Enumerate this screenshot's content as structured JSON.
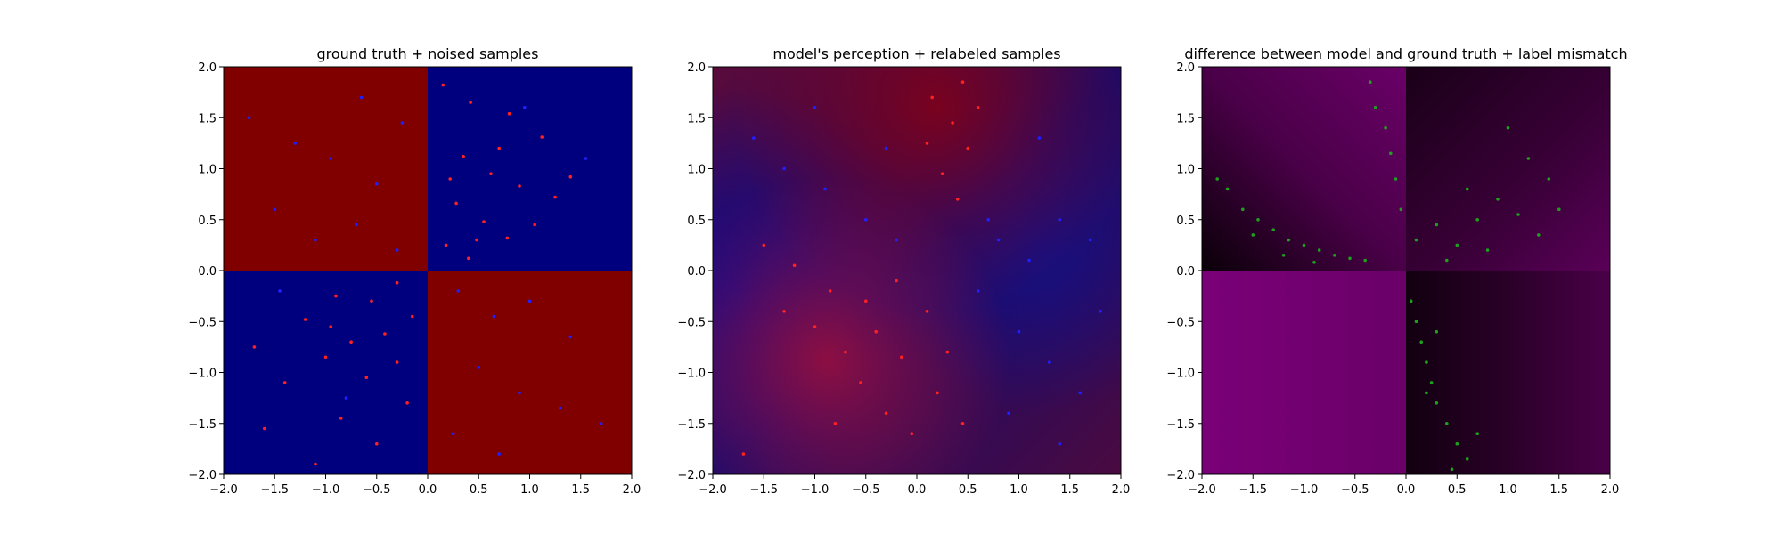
{
  "chart_data": [
    {
      "type": "scatter",
      "title": "ground truth + noised samples",
      "xlabel": "",
      "ylabel": "",
      "xlim": [
        -2.0,
        2.0
      ],
      "ylim": [
        -2.0,
        2.0
      ],
      "xticks": [
        "−2.0",
        "−1.5",
        "−1.0",
        "−0.5",
        "0.0",
        "0.5",
        "1.0",
        "1.5",
        "2.0"
      ],
      "yticks": [
        "−2.0",
        "−1.5",
        "−1.0",
        "−0.5",
        "0.0",
        "0.5",
        "1.0",
        "1.5",
        "2.0"
      ],
      "background": "quadrant classes (XOR): red where x<0,y>0 and x>0,y<0; blue otherwise",
      "colors": {
        "class_red": "#800000",
        "class_blue": "#00007f",
        "point_red": "#ff2020",
        "point_blue": "#2020ff"
      },
      "series": [
        {
          "name": "",
          "color": "#ff2020",
          "values": [
            [
              0.15,
              1.82
            ],
            [
              0.42,
              1.65
            ],
            [
              0.8,
              1.54
            ],
            [
              1.12,
              1.31
            ],
            [
              0.35,
              1.12
            ],
            [
              0.62,
              0.95
            ],
            [
              0.9,
              0.83
            ],
            [
              1.25,
              0.72
            ],
            [
              0.28,
              0.66
            ],
            [
              0.55,
              0.48
            ],
            [
              0.78,
              0.32
            ],
            [
              0.18,
              0.25
            ],
            [
              0.4,
              0.12
            ],
            [
              1.05,
              0.45
            ],
            [
              1.4,
              0.92
            ],
            [
              0.7,
              1.2
            ],
            [
              0.22,
              0.9
            ],
            [
              0.48,
              0.3
            ],
            [
              -0.3,
              -0.12
            ],
            [
              -0.55,
              -0.3
            ],
            [
              -0.9,
              -0.25
            ],
            [
              -1.2,
              -0.48
            ],
            [
              -0.42,
              -0.62
            ],
            [
              -0.75,
              -0.7
            ],
            [
              -1.0,
              -0.85
            ],
            [
              -0.3,
              -0.9
            ],
            [
              -0.6,
              -1.05
            ],
            [
              -1.4,
              -1.1
            ],
            [
              -0.2,
              -1.3
            ],
            [
              -0.85,
              -1.45
            ],
            [
              -1.6,
              -1.55
            ],
            [
              -0.5,
              -1.7
            ],
            [
              -1.1,
              -1.9
            ],
            [
              -0.15,
              -0.45
            ],
            [
              -1.7,
              -0.75
            ],
            [
              -0.95,
              -0.55
            ]
          ]
        },
        {
          "name": "",
          "color": "#2020ff",
          "values": [
            [
              -0.3,
              0.2
            ],
            [
              -0.7,
              0.45
            ],
            [
              -1.1,
              0.3
            ],
            [
              -1.5,
              0.6
            ],
            [
              -0.5,
              0.85
            ],
            [
              -0.95,
              1.1
            ],
            [
              -1.3,
              1.25
            ],
            [
              -0.25,
              1.45
            ],
            [
              -0.65,
              1.7
            ],
            [
              -1.75,
              1.5
            ],
            [
              0.3,
              -0.2
            ],
            [
              0.65,
              -0.45
            ],
            [
              1.0,
              -0.3
            ],
            [
              1.4,
              -0.65
            ],
            [
              0.5,
              -0.95
            ],
            [
              0.9,
              -1.2
            ],
            [
              1.3,
              -1.35
            ],
            [
              0.25,
              -1.6
            ],
            [
              0.7,
              -1.8
            ],
            [
              1.7,
              -1.5
            ],
            [
              1.55,
              1.1
            ],
            [
              0.95,
              1.6
            ],
            [
              -1.45,
              -0.2
            ],
            [
              -0.8,
              -1.25
            ]
          ]
        }
      ]
    },
    {
      "type": "scatter",
      "title": "model's perception + relabeled samples",
      "xlabel": "",
      "ylabel": "",
      "xlim": [
        -2.0,
        2.0
      ],
      "ylim": [
        -2.0,
        2.0
      ],
      "xticks": [
        "−2.0",
        "−1.5",
        "−1.0",
        "−0.5",
        "0.0",
        "0.5",
        "1.0",
        "1.5",
        "2.0"
      ],
      "yticks": [
        "−2.0",
        "−1.5",
        "−1.0",
        "−0.5",
        "0.0",
        "0.5",
        "1.0",
        "1.5",
        "2.0"
      ],
      "background": "smooth model prediction blending red and blue",
      "colors": {
        "class_red": "#7a0012",
        "class_blue": "#0a0a80",
        "point_red": "#ff2020",
        "point_blue": "#2020ff"
      },
      "series": [
        {
          "name": "",
          "color": "#ff2020",
          "values": [
            [
              0.15,
              1.7
            ],
            [
              0.35,
              1.45
            ],
            [
              0.5,
              1.2
            ],
            [
              0.25,
              0.95
            ],
            [
              0.4,
              0.7
            ],
            [
              0.6,
              1.6
            ],
            [
              0.1,
              1.25
            ],
            [
              0.45,
              1.85
            ],
            [
              -0.2,
              -0.1
            ],
            [
              -0.5,
              -0.3
            ],
            [
              -0.85,
              -0.2
            ],
            [
              -1.2,
              0.05
            ],
            [
              -1.5,
              0.25
            ],
            [
              -0.4,
              -0.6
            ],
            [
              -0.7,
              -0.8
            ],
            [
              -1.0,
              -0.55
            ],
            [
              -0.15,
              -0.85
            ],
            [
              -0.55,
              -1.1
            ],
            [
              -0.3,
              -1.4
            ],
            [
              -0.8,
              -1.5
            ],
            [
              -1.3,
              -0.4
            ],
            [
              0.1,
              -0.4
            ],
            [
              0.3,
              -0.8
            ],
            [
              0.2,
              -1.2
            ],
            [
              -0.05,
              -1.6
            ],
            [
              0.45,
              -1.5
            ],
            [
              -1.7,
              -1.8
            ]
          ]
        },
        {
          "name": "",
          "color": "#2020ff",
          "values": [
            [
              -0.5,
              0.5
            ],
            [
              -0.9,
              0.8
            ],
            [
              -1.3,
              1.0
            ],
            [
              -1.6,
              1.3
            ],
            [
              -0.3,
              1.2
            ],
            [
              -1.0,
              1.6
            ],
            [
              0.8,
              0.3
            ],
            [
              1.1,
              0.1
            ],
            [
              1.4,
              0.5
            ],
            [
              1.7,
              0.3
            ],
            [
              0.6,
              -0.2
            ],
            [
              1.0,
              -0.6
            ],
            [
              1.3,
              -0.9
            ],
            [
              1.6,
              -1.2
            ],
            [
              0.9,
              -1.4
            ],
            [
              1.4,
              -1.7
            ],
            [
              -0.2,
              0.3
            ],
            [
              0.7,
              0.5
            ],
            [
              1.8,
              -0.4
            ],
            [
              1.2,
              1.3
            ]
          ]
        }
      ]
    },
    {
      "type": "scatter",
      "title": "difference between model and ground truth + label mismatch",
      "xlabel": "",
      "ylabel": "",
      "xlim": [
        -2.0,
        2.0
      ],
      "ylim": [
        -2.0,
        2.0
      ],
      "xticks": [
        "−2.0",
        "−1.5",
        "−1.0",
        "−0.5",
        "0.0",
        "0.5",
        "1.0",
        "1.5",
        "2.0"
      ],
      "yticks": [
        "−2.0",
        "−1.5",
        "−1.0",
        "−0.5",
        "0.0",
        "0.5",
        "1.0",
        "1.5",
        "2.0"
      ],
      "background": "purple intensity showing model vs ground-truth difference",
      "colors": {
        "diff_high": "#7a0078",
        "diff_low": "#120010",
        "point_mismatch": "#1ea01e"
      },
      "series": [
        {
          "name": "",
          "color": "#1ea01e",
          "values": [
            [
              -1.75,
              0.8
            ],
            [
              -1.6,
              0.6
            ],
            [
              -1.45,
              0.5
            ],
            [
              -1.3,
              0.4
            ],
            [
              -1.15,
              0.3
            ],
            [
              -1.0,
              0.25
            ],
            [
              -0.85,
              0.2
            ],
            [
              -0.7,
              0.15
            ],
            [
              -0.55,
              0.12
            ],
            [
              -0.4,
              0.1
            ],
            [
              -1.5,
              0.35
            ],
            [
              -1.2,
              0.15
            ],
            [
              -0.9,
              0.08
            ],
            [
              -1.85,
              0.9
            ],
            [
              -0.35,
              1.85
            ],
            [
              -0.3,
              1.6
            ],
            [
              -0.2,
              1.4
            ],
            [
              -0.15,
              1.15
            ],
            [
              -0.1,
              0.9
            ],
            [
              -0.05,
              0.6
            ],
            [
              0.1,
              0.3
            ],
            [
              0.3,
              0.45
            ],
            [
              0.5,
              0.25
            ],
            [
              0.7,
              0.5
            ],
            [
              0.9,
              0.7
            ],
            [
              1.1,
              0.55
            ],
            [
              1.3,
              0.35
            ],
            [
              1.5,
              0.6
            ],
            [
              1.2,
              1.1
            ],
            [
              1.0,
              1.4
            ],
            [
              0.6,
              0.8
            ],
            [
              0.4,
              0.1
            ],
            [
              1.4,
              0.9
            ],
            [
              0.8,
              0.2
            ],
            [
              0.05,
              -0.3
            ],
            [
              0.1,
              -0.5
            ],
            [
              0.15,
              -0.7
            ],
            [
              0.2,
              -0.9
            ],
            [
              0.25,
              -1.1
            ],
            [
              0.3,
              -1.3
            ],
            [
              0.4,
              -1.5
            ],
            [
              0.5,
              -1.7
            ],
            [
              0.6,
              -1.85
            ],
            [
              0.3,
              -0.6
            ],
            [
              0.2,
              -1.2
            ],
            [
              0.7,
              -1.6
            ],
            [
              0.45,
              -1.95
            ]
          ]
        }
      ]
    }
  ]
}
